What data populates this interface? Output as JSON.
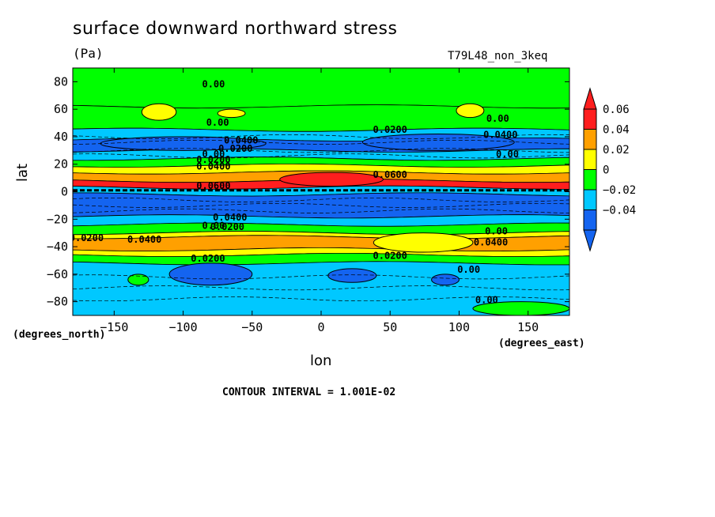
{
  "chart_data": {
    "type": "heatmap",
    "title": "surface downward northward stress",
    "units": "(Pa)",
    "dataset_label": "T79L48_non_3keq",
    "xlabel": "lon",
    "ylabel": "lat",
    "x_units_label": "(degrees_east)",
    "y_units_label": "(degrees_north)",
    "xlim": [
      -180,
      180
    ],
    "ylim": [
      -90,
      90
    ],
    "x_ticks": [
      -150,
      -100,
      -50,
      0,
      50,
      100,
      150
    ],
    "y_ticks": [
      -80,
      -60,
      -40,
      -20,
      0,
      20,
      40,
      60,
      80
    ],
    "contour_interval_text": "CONTOUR INTERVAL = 1.001E-02",
    "colorbar": {
      "levels": [
        -0.04,
        -0.02,
        0,
        0.02,
        0.04,
        0.06
      ],
      "level_labels": [
        "−0.04",
        "−0.02",
        "0",
        "0.02",
        "0.04",
        "0.06"
      ],
      "colors": [
        "#1464f0",
        "#00c8ff",
        "#00ff00",
        "#ffff00",
        "#ffa000",
        "#ff1e1e"
      ],
      "colors_meaning": [
        "< -0.04",
        "-0.04 to -0.02",
        "-0.02 to 0",
        "0 to 0.02",
        "0.02 to 0.04",
        "0.04 to 0.06 (> 0.06 red)"
      ]
    },
    "zonal_bands": [
      {
        "lat": [
          62,
          90
        ],
        "value_range": "-0.02 to 0",
        "color": "#00ff00"
      },
      {
        "lat": [
          45,
          62
        ],
        "value_range": "-0.02 to 0",
        "color": "#00ff00"
      },
      {
        "lat": [
          38,
          45
        ],
        "value_range": "-0.04 to -0.02",
        "color": "#00c8ff"
      },
      {
        "lat": [
          30,
          38
        ],
        "value_range": "< -0.04",
        "color": "#1464f0"
      },
      {
        "lat": [
          24,
          30
        ],
        "value_range": "-0.04 to -0.02",
        "color": "#00c8ff"
      },
      {
        "lat": [
          19,
          24
        ],
        "value_range": "-0.02 to 0",
        "color": "#00ff00"
      },
      {
        "lat": [
          14,
          19
        ],
        "value_range": "0 to 0.02",
        "color": "#ffff00"
      },
      {
        "lat": [
          8,
          14
        ],
        "value_range": "0.02 to 0.04",
        "color": "#ffa000"
      },
      {
        "lat": [
          3,
          8
        ],
        "value_range": "> 0.04",
        "color": "#ff1e1e"
      },
      {
        "lat": [
          -2,
          3
        ],
        "value_range": "-0.04 to -0.02",
        "color": "#00c8ff"
      },
      {
        "lat": [
          -18,
          -2
        ],
        "value_range": "< -0.04",
        "color": "#1464f0"
      },
      {
        "lat": [
          -24,
          -18
        ],
        "value_range": "-0.04 to -0.02",
        "color": "#00c8ff"
      },
      {
        "lat": [
          -30,
          -24
        ],
        "value_range": "-0.02 to 0",
        "color": "#00ff00"
      },
      {
        "lat": [
          -33,
          -30
        ],
        "value_range": "0 to 0.02",
        "color": "#ffff00"
      },
      {
        "lat": [
          -42,
          -33
        ],
        "value_range": "0.02 to 0.04",
        "color": "#ffa000"
      },
      {
        "lat": [
          -46,
          -42
        ],
        "value_range": "0 to 0.02",
        "color": "#ffff00"
      },
      {
        "lat": [
          -52,
          -46
        ],
        "value_range": "-0.02 to 0",
        "color": "#00ff00"
      },
      {
        "lat": [
          -90,
          -52
        ],
        "value_range": "-0.04 to -0.02",
        "color": "#00c8ff"
      }
    ],
    "features": [
      {
        "desc": "equatorial maximum",
        "lon": [
          -30,
          45
        ],
        "lat": [
          4,
          14
        ],
        "color": "#ff1e1e"
      },
      {
        "desc": "southern maximum",
        "lon": [
          58,
          92
        ],
        "lat": [
          -41,
          -33
        ],
        "color": "#ff1e1e"
      },
      {
        "desc": "southern max ring",
        "lon": [
          38,
          110
        ],
        "lat": [
          -44,
          -30
        ],
        "color": "#ffff00"
      },
      {
        "desc": "northern minimum",
        "lon": [
          30,
          140
        ],
        "lat": [
          30,
          42
        ],
        "color": "#1464f0"
      },
      {
        "desc": "northern minimum",
        "lon": [
          -160,
          -40
        ],
        "lat": [
          30,
          40
        ],
        "color": "#1464f0"
      },
      {
        "desc": "high-lat positive",
        "lon": [
          -130,
          -105
        ],
        "lat": [
          52,
          64
        ],
        "color": "#ffff00"
      },
      {
        "desc": "high-lat positive",
        "lon": [
          98,
          118
        ],
        "lat": [
          54,
          64
        ],
        "color": "#ffff00"
      },
      {
        "desc": "high-lat positive",
        "lon": [
          -75,
          -55
        ],
        "lat": [
          54,
          60
        ],
        "color": "#ffff00"
      },
      {
        "desc": "southern negative",
        "lon": [
          -110,
          -50
        ],
        "lat": [
          -68,
          -52
        ],
        "color": "#1464f0"
      },
      {
        "desc": "southern negative",
        "lon": [
          -140,
          -125
        ],
        "lat": [
          -68,
          -60
        ],
        "color": "#00ff00"
      },
      {
        "desc": "southern negative",
        "lon": [
          5,
          40
        ],
        "lat": [
          -66,
          -56
        ],
        "color": "#1464f0"
      },
      {
        "desc": "southern negative",
        "lon": [
          80,
          100
        ],
        "lat": [
          -68,
          -60
        ],
        "color": "#1464f0"
      },
      {
        "desc": "antarctic edge",
        "lon": [
          110,
          180
        ],
        "lat": [
          -90,
          -80
        ],
        "color": "#00ff00"
      }
    ],
    "contour_labels": [
      {
        "text": "0.00",
        "lon": -78,
        "lat": 78
      },
      {
        "text": "0.00",
        "lon": -75,
        "lat": 50
      },
      {
        "text": "0.00",
        "lon": 128,
        "lat": 53
      },
      {
        "text": "0.0200",
        "lon": 50,
        "lat": 45
      },
      {
        "text": "0.0400",
        "lon": -58,
        "lat": 37
      },
      {
        "text": "0.0400",
        "lon": 130,
        "lat": 41
      },
      {
        "text": "0.0200",
        "lon": -62,
        "lat": 31
      },
      {
        "text": "0.00",
        "lon": -78,
        "lat": 27
      },
      {
        "text": "0.00",
        "lon": 135,
        "lat": 27
      },
      {
        "text": "0.0200",
        "lon": -78,
        "lat": 23
      },
      {
        "text": "0.0400",
        "lon": -78,
        "lat": 18
      },
      {
        "text": "0.0600",
        "lon": 50,
        "lat": 12
      },
      {
        "text": "0.0600",
        "lon": -78,
        "lat": 4
      },
      {
        "text": "0.0400",
        "lon": -66,
        "lat": -19
      },
      {
        "text": "0.00",
        "lon": -78,
        "lat": -25
      },
      {
        "text": "0.0200",
        "lon": -68,
        "lat": -26
      },
      {
        "text": "0.0200",
        "lon": -170,
        "lat": -34
      },
      {
        "text": "0.0400",
        "lon": -128,
        "lat": -35
      },
      {
        "text": "0.00",
        "lon": 127,
        "lat": -29
      },
      {
        "text": "0.0400",
        "lon": 123,
        "lat": -37
      },
      {
        "text": "0.0200",
        "lon": 50,
        "lat": -47
      },
      {
        "text": "0.0200",
        "lon": -82,
        "lat": -49
      },
      {
        "text": "0.00",
        "lon": 107,
        "lat": -57
      },
      {
        "text": "0.00",
        "lon": 120,
        "lat": -79
      }
    ]
  }
}
